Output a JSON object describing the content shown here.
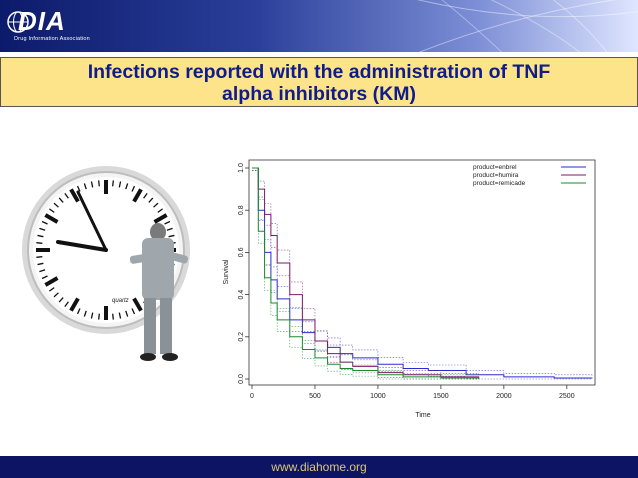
{
  "header": {
    "logo_text": "DIA",
    "logo_tagline": "Drug Information Association"
  },
  "title": {
    "line1": "Infections reported with the administration of TNF",
    "line2": "alpha inhibitors (KM)"
  },
  "illustration": {
    "clock_brand": "quartz"
  },
  "footer": {
    "url": "www.diahome.org"
  },
  "colors": {
    "title_text": "#0e1d8a",
    "title_bg": "#fde38a",
    "footer_bg": "#0c1463",
    "footer_text": "#e0c878",
    "enbrel": "#2b2bd0",
    "humira": "#7a1a6a",
    "remicade": "#1a8a2a"
  },
  "chart_data": {
    "type": "line",
    "xlabel": "Time",
    "ylabel": "Survival",
    "xlim": [
      0,
      2700
    ],
    "ylim": [
      0,
      1
    ],
    "x_ticks": [
      "0",
      "500",
      "1000",
      "1500",
      "2000",
      "2500"
    ],
    "y_ticks": [
      "0.0",
      "0.2",
      "0.4",
      "0.6",
      "0.8",
      "1.0"
    ],
    "legend_position": "top-right",
    "grid": false,
    "series": [
      {
        "name": "product=enbrel",
        "color": "#2b2bd0",
        "x": [
          0,
          50,
          100,
          150,
          200,
          300,
          400,
          500,
          600,
          700,
          800,
          1000,
          1200,
          1400,
          1700,
          2000,
          2400,
          2700
        ],
        "y": [
          1.0,
          0.8,
          0.6,
          0.47,
          0.38,
          0.28,
          0.22,
          0.18,
          0.15,
          0.12,
          0.1,
          0.07,
          0.05,
          0.04,
          0.02,
          0.01,
          0.005,
          0.003
        ]
      },
      {
        "name": "product=humira",
        "color": "#7a1a6a",
        "x": [
          0,
          50,
          100,
          150,
          200,
          300,
          400,
          500,
          600,
          700,
          800,
          1000,
          1200,
          1500,
          1800
        ],
        "y": [
          1.0,
          0.9,
          0.78,
          0.68,
          0.55,
          0.4,
          0.28,
          0.18,
          0.12,
          0.08,
          0.06,
          0.03,
          0.02,
          0.01,
          0.0
        ]
      },
      {
        "name": "product=remicade",
        "color": "#1a8a2a",
        "x": [
          0,
          50,
          100,
          150,
          200,
          300,
          400,
          500,
          600,
          700,
          800,
          1000,
          1200,
          1500,
          1800
        ],
        "y": [
          1.0,
          0.7,
          0.48,
          0.36,
          0.28,
          0.2,
          0.14,
          0.1,
          0.07,
          0.05,
          0.04,
          0.02,
          0.01,
          0.005,
          0.002
        ]
      }
    ]
  }
}
